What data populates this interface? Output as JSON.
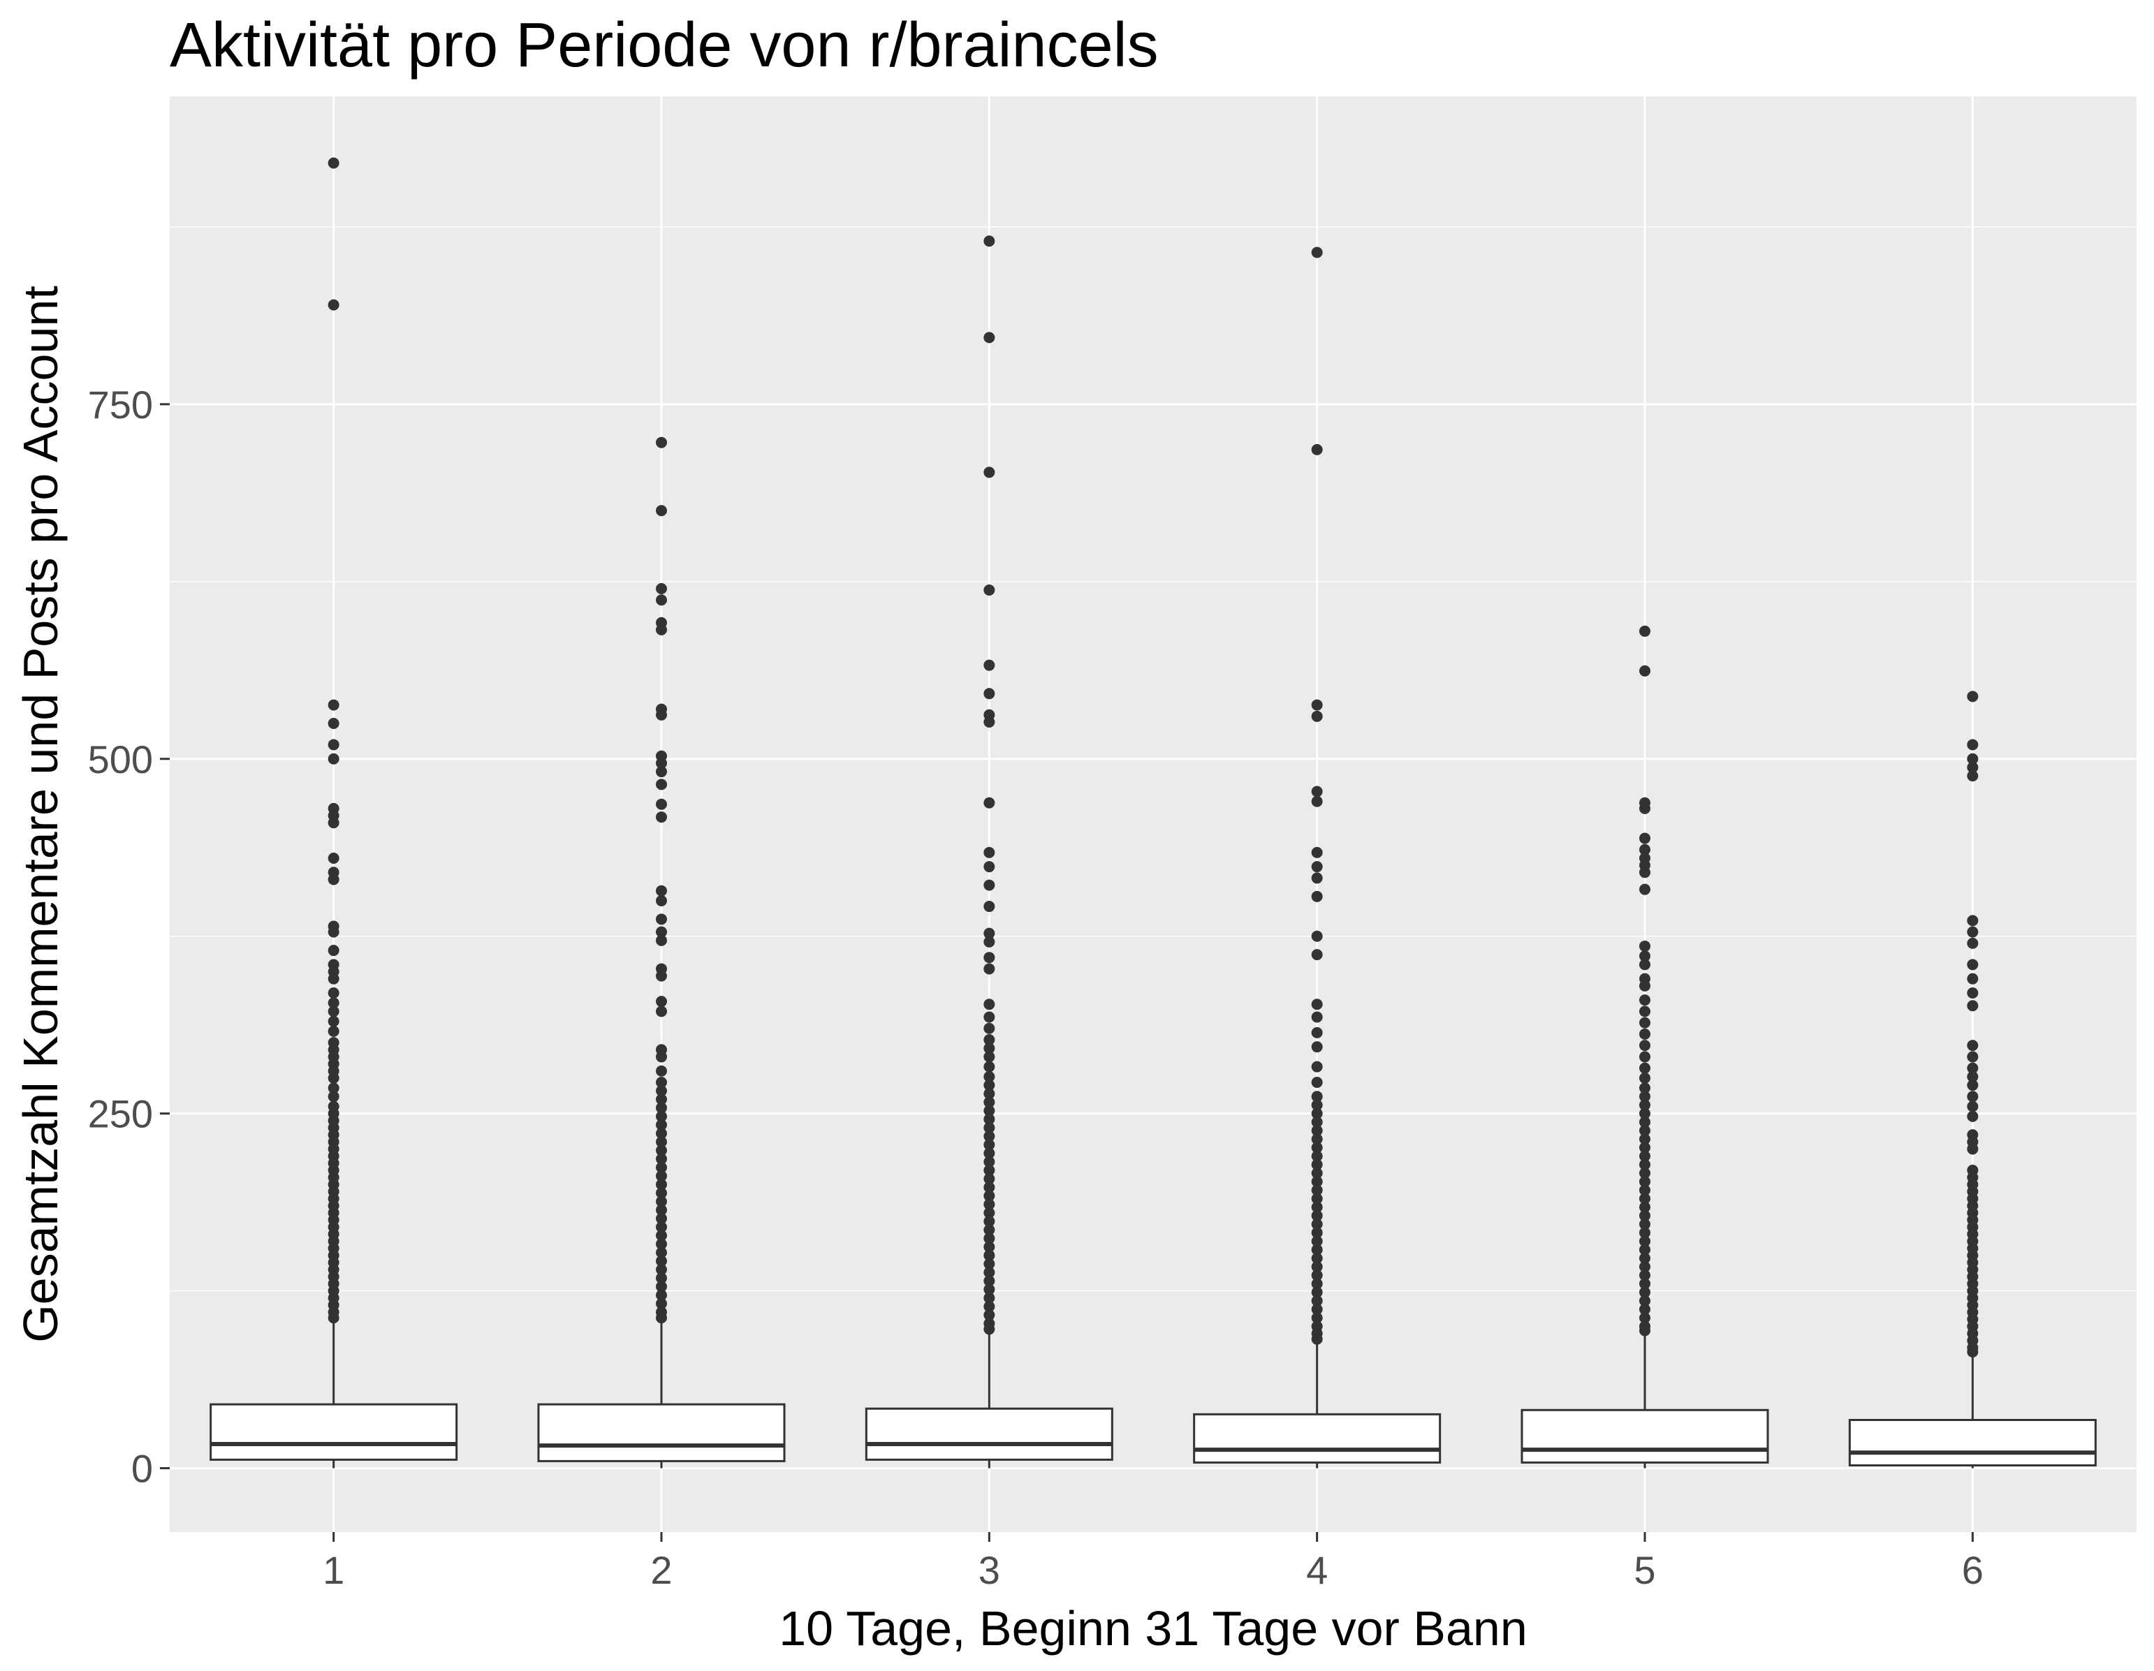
{
  "chart_data": {
    "type": "box",
    "title": "Aktivität pro Periode von r/braincels",
    "xlabel": "10 Tage, Beginn 31 Tage vor Bann",
    "ylabel": "Gesamtzahl Kommentare und Posts pro Account",
    "categories": [
      "1",
      "2",
      "3",
      "4",
      "5",
      "6"
    ],
    "y_ticks": [
      0,
      250,
      500,
      750
    ],
    "y_tick_labels": [
      "0",
      "250",
      "500",
      "750"
    ],
    "ylim": [
      -45,
      967
    ],
    "grid": true,
    "boxes": [
      {
        "category": "1",
        "lower_whisker": 0,
        "q1": 6,
        "median": 17,
        "q3": 45,
        "upper_whisker": 103,
        "outliers": [
          920,
          820,
          538,
          525,
          510,
          500,
          465,
          460,
          455,
          430,
          420,
          415,
          382,
          378,
          365,
          355,
          350,
          345,
          335,
          328,
          322,
          315,
          308,
          300,
          295,
          290,
          285,
          280,
          275,
          268,
          262,
          255,
          250,
          245,
          240,
          235,
          230,
          225,
          220,
          215,
          210,
          205,
          200,
          195,
          190,
          185,
          180,
          175,
          170,
          165,
          160,
          155,
          150,
          145,
          140,
          135,
          130,
          125,
          120,
          115,
          110,
          106
        ]
      },
      {
        "category": "2",
        "lower_whisker": 0,
        "q1": 5,
        "median": 16,
        "q3": 45,
        "upper_whisker": 103,
        "outliers": [
          723,
          675,
          620,
          612,
          596,
          591,
          535,
          531,
          502,
          497,
          491,
          482,
          468,
          459,
          407,
          400,
          387,
          378,
          372,
          352,
          347,
          329,
          322,
          295,
          290,
          280,
          272,
          266,
          260,
          254,
          248,
          242,
          236,
          230,
          224,
          218,
          212,
          206,
          200,
          194,
          188,
          182,
          176,
          170,
          164,
          158,
          152,
          146,
          140,
          134,
          128,
          122,
          116,
          110,
          106
        ]
      },
      {
        "category": "3",
        "lower_whisker": 0,
        "q1": 6,
        "median": 17,
        "q3": 42,
        "upper_whisker": 95,
        "outliers": [
          865,
          797,
          702,
          619,
          566,
          546,
          531,
          526,
          469,
          434,
          424,
          411,
          396,
          377,
          371,
          360,
          352,
          327,
          318,
          310,
          302,
          296,
          290,
          283,
          276,
          270,
          264,
          258,
          252,
          246,
          240,
          234,
          228,
          222,
          216,
          210,
          204,
          198,
          192,
          186,
          180,
          174,
          168,
          162,
          156,
          150,
          144,
          138,
          132,
          126,
          120,
          114,
          108,
          102,
          98
        ]
      },
      {
        "category": "4",
        "lower_whisker": 0,
        "q1": 4,
        "median": 13,
        "q3": 38,
        "upper_whisker": 88,
        "outliers": [
          857,
          718,
          538,
          530,
          477,
          470,
          434,
          424,
          416,
          403,
          375,
          362,
          327,
          318,
          307,
          297,
          283,
          272,
          262,
          256,
          250,
          244,
          238,
          232,
          226,
          220,
          214,
          208,
          202,
          196,
          190,
          184,
          178,
          172,
          166,
          160,
          154,
          148,
          142,
          136,
          130,
          124,
          118,
          112,
          106,
          100,
          95,
          91
        ]
      },
      {
        "category": "5",
        "lower_whisker": 0,
        "q1": 4,
        "median": 13,
        "q3": 41,
        "upper_whisker": 95,
        "outliers": [
          590,
          562,
          469,
          465,
          444,
          436,
          430,
          425,
          420,
          408,
          368,
          361,
          355,
          345,
          340,
          330,
          322,
          314,
          306,
          298,
          290,
          282,
          275,
          268,
          262,
          256,
          250,
          244,
          238,
          232,
          226,
          220,
          214,
          208,
          202,
          196,
          190,
          184,
          178,
          172,
          166,
          160,
          154,
          148,
          142,
          136,
          130,
          124,
          118,
          112,
          106,
          100,
          97
        ]
      },
      {
        "category": "6",
        "lower_whisker": 0,
        "q1": 2,
        "median": 11,
        "q3": 34,
        "upper_whisker": 80,
        "outliers": [
          544,
          510,
          500,
          494,
          488,
          386,
          378,
          370,
          355,
          345,
          335,
          326,
          298,
          290,
          282,
          276,
          270,
          262,
          255,
          248,
          235,
          230,
          225,
          210,
          205,
          200,
          195,
          190,
          185,
          180,
          175,
          170,
          165,
          160,
          155,
          150,
          145,
          140,
          135,
          130,
          125,
          120,
          115,
          110,
          105,
          100,
          95,
          90,
          85,
          82
        ]
      }
    ]
  }
}
